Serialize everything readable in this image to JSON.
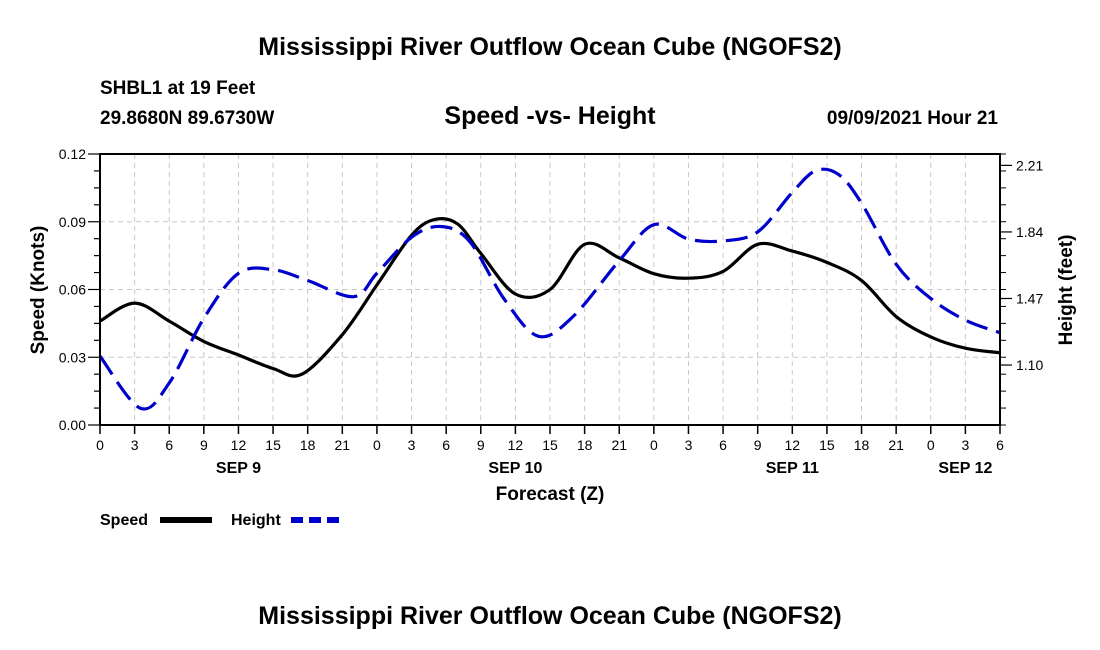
{
  "header": {
    "title": "Mississippi River Outflow Ocean Cube (NGOFS2)",
    "station": "SHBL1 at 19 Feet",
    "coords": "29.8680N  89.6730W",
    "subtitle": "Speed -vs- Height",
    "datetime": "09/09/2021 Hour 21"
  },
  "footer": {
    "title": "Mississippi River Outflow Ocean Cube (NGOFS2)"
  },
  "legend": {
    "speed_label": "Speed",
    "height_label": "Height"
  },
  "colors": {
    "speed": "#000000",
    "height": "#0000cc",
    "grid": "#c8c8c8"
  },
  "chart_data": {
    "type": "line",
    "title": "Speed -vs- Height",
    "xlabel": "Forecast (Z)",
    "ylabel": "Speed (Knots)",
    "ylabel_right": "Height (feet)",
    "x_range_hours": [
      0,
      78
    ],
    "x_ticks": [
      {
        "h": 0,
        "label": "0"
      },
      {
        "h": 3,
        "label": "3"
      },
      {
        "h": 6,
        "label": "6"
      },
      {
        "h": 9,
        "label": "9"
      },
      {
        "h": 12,
        "label": "12"
      },
      {
        "h": 15,
        "label": "15"
      },
      {
        "h": 18,
        "label": "18"
      },
      {
        "h": 21,
        "label": "21"
      },
      {
        "h": 24,
        "label": "0"
      },
      {
        "h": 27,
        "label": "3"
      },
      {
        "h": 30,
        "label": "6"
      },
      {
        "h": 33,
        "label": "9"
      },
      {
        "h": 36,
        "label": "12"
      },
      {
        "h": 39,
        "label": "15"
      },
      {
        "h": 42,
        "label": "18"
      },
      {
        "h": 45,
        "label": "21"
      },
      {
        "h": 48,
        "label": "0"
      },
      {
        "h": 51,
        "label": "3"
      },
      {
        "h": 54,
        "label": "6"
      },
      {
        "h": 57,
        "label": "9"
      },
      {
        "h": 60,
        "label": "12"
      },
      {
        "h": 63,
        "label": "15"
      },
      {
        "h": 66,
        "label": "18"
      },
      {
        "h": 69,
        "label": "21"
      },
      {
        "h": 72,
        "label": "0"
      },
      {
        "h": 75,
        "label": "3"
      },
      {
        "h": 78,
        "label": "6"
      }
    ],
    "date_labels": [
      {
        "h": 12,
        "label": "SEP 9"
      },
      {
        "h": 36,
        "label": "SEP 10"
      },
      {
        "h": 60,
        "label": "SEP 11"
      },
      {
        "h": 75,
        "label": "SEP 12"
      }
    ],
    "y_left": {
      "range": [
        0,
        0.12
      ],
      "ticks": [
        "0.00",
        "0.03",
        "0.06",
        "0.09",
        "0.12"
      ]
    },
    "y_right": {
      "range": [
        0.7667,
        2.2733
      ],
      "ticks": [
        "1.10",
        "1.47",
        "1.84",
        "2.21"
      ]
    },
    "series": [
      {
        "name": "Speed",
        "axis": "left",
        "style": "solid",
        "points": [
          [
            0,
            0.046
          ],
          [
            3,
            0.054
          ],
          [
            6,
            0.046
          ],
          [
            9,
            0.037
          ],
          [
            12,
            0.031
          ],
          [
            15,
            0.025
          ],
          [
            17.5,
            0.0225
          ],
          [
            21,
            0.04
          ],
          [
            24,
            0.062
          ],
          [
            27,
            0.084
          ],
          [
            29,
            0.091
          ],
          [
            31,
            0.089
          ],
          [
            33,
            0.076
          ],
          [
            36,
            0.058
          ],
          [
            39,
            0.06
          ],
          [
            42,
            0.08
          ],
          [
            45,
            0.074
          ],
          [
            48,
            0.067
          ],
          [
            51,
            0.065
          ],
          [
            54,
            0.068
          ],
          [
            57,
            0.08
          ],
          [
            60,
            0.077
          ],
          [
            63,
            0.072
          ],
          [
            66,
            0.064
          ],
          [
            69,
            0.048
          ],
          [
            72,
            0.039
          ],
          [
            75,
            0.034
          ],
          [
            78,
            0.032
          ]
        ]
      },
      {
        "name": "Height",
        "axis": "right",
        "style": "dashed",
        "points": [
          [
            0,
            1.15
          ],
          [
            3.5,
            0.86
          ],
          [
            6,
            1.0
          ],
          [
            9,
            1.36
          ],
          [
            12,
            1.61
          ],
          [
            15,
            1.63
          ],
          [
            18,
            1.57
          ],
          [
            22,
            1.48
          ],
          [
            24,
            1.61
          ],
          [
            27,
            1.81
          ],
          [
            29.5,
            1.87
          ],
          [
            32,
            1.79
          ],
          [
            35,
            1.47
          ],
          [
            38,
            1.26
          ],
          [
            41,
            1.37
          ],
          [
            45,
            1.68
          ],
          [
            48,
            1.88
          ],
          [
            51,
            1.8
          ],
          [
            54,
            1.79
          ],
          [
            57,
            1.84
          ],
          [
            60,
            2.06
          ],
          [
            62,
            2.18
          ],
          [
            64,
            2.16
          ],
          [
            66,
            2.0
          ],
          [
            69,
            1.66
          ],
          [
            72,
            1.47
          ],
          [
            75,
            1.35
          ],
          [
            78,
            1.28
          ]
        ]
      }
    ]
  }
}
